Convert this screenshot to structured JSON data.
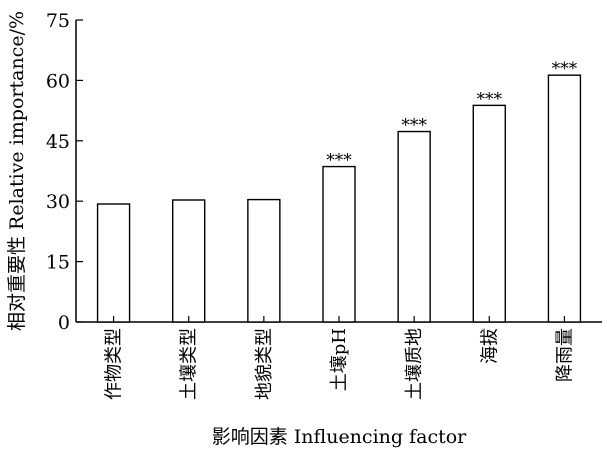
{
  "chart_data": {
    "type": "bar",
    "categories": [
      "作物类型",
      "土壤类型",
      "地貌类型",
      "土壤pH",
      "土壤质地",
      "海拔",
      "降雨量"
    ],
    "values": [
      29.3,
      30.3,
      30.4,
      38.6,
      47.3,
      53.8,
      61.3
    ],
    "annotations": [
      "",
      "",
      "",
      "***",
      "***",
      "***",
      "***"
    ],
    "xlabel": "影响因素 Influencing factor",
    "ylabel": "相对重要性 Relative importance/%",
    "ylim": [
      0,
      75
    ],
    "yticks": [
      0,
      15,
      30,
      45,
      60,
      75
    ],
    "grid": false,
    "bar_fill": "#ffffff",
    "bar_stroke": "#000000"
  }
}
